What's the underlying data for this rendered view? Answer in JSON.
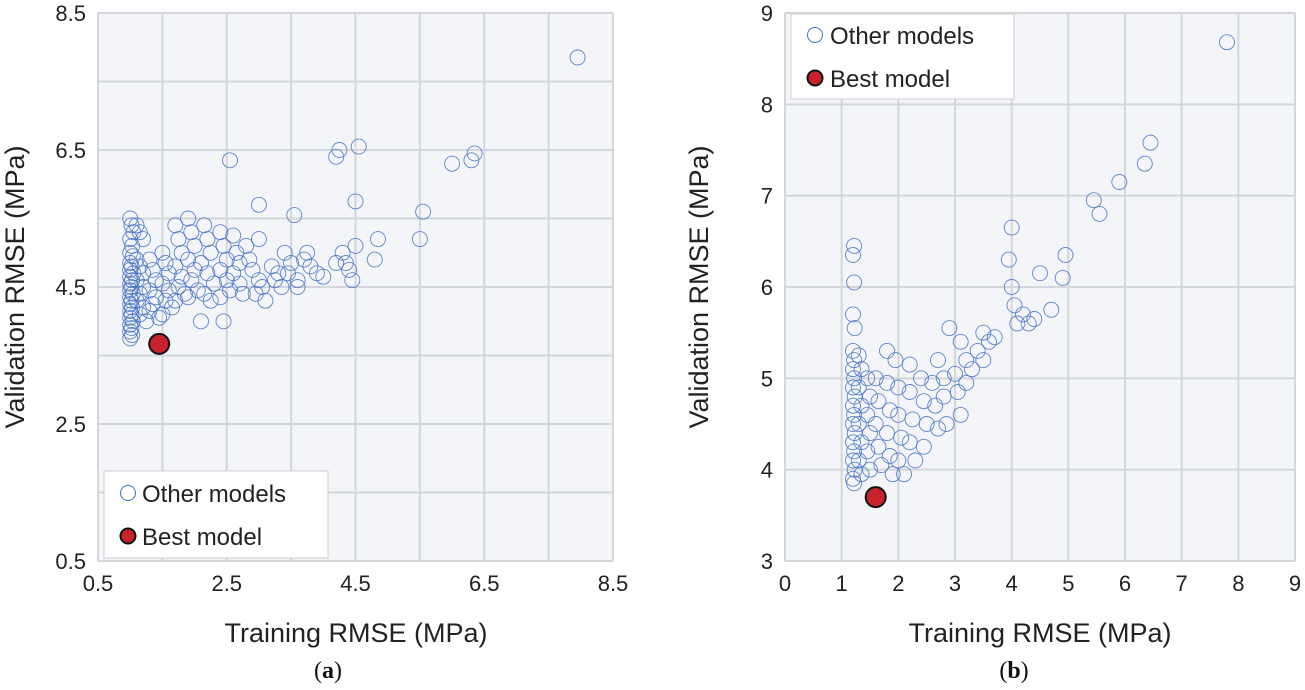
{
  "chart_data": [
    {
      "id": "a",
      "type": "scatter",
      "caption_letter": "a",
      "xlabel": "Training RMSE (MPa)",
      "ylabel": "Validation RMSE (MPa)",
      "xlim": [
        0.5,
        8.5
      ],
      "ylim": [
        0.5,
        8.5
      ],
      "xticks": [
        "0.5",
        "2.5",
        "4.5",
        "6.5",
        "8.5"
      ],
      "yticks": [
        "0.5",
        "2.5",
        "4.5",
        "6.5",
        "8.5"
      ],
      "xtick_values": [
        0.5,
        2.5,
        4.5,
        6.5,
        8.5
      ],
      "ytick_values": [
        0.5,
        2.5,
        4.5,
        6.5,
        8.5
      ],
      "grid_x": [
        0.5,
        1.5,
        2.5,
        3.5,
        4.5,
        5.5,
        6.5,
        7.5,
        8.5
      ],
      "grid_y": [
        0.5,
        1.5,
        2.5,
        3.5,
        4.5,
        5.5,
        6.5,
        7.5,
        8.5
      ],
      "legend_position": "bottom-left",
      "series": [
        {
          "name": "Other models",
          "marker": "open-circle",
          "color": "#4472c4",
          "points": [
            [
              1.0,
              5.5
            ],
            [
              1.02,
              5.4
            ],
            [
              1.05,
              5.3
            ],
            [
              1.0,
              5.2
            ],
            [
              1.03,
              5.1
            ],
            [
              1.0,
              5.0
            ],
            [
              1.04,
              4.95
            ],
            [
              1.0,
              4.85
            ],
            [
              1.02,
              4.8
            ],
            [
              1.0,
              4.75
            ],
            [
              1.05,
              4.7
            ],
            [
              1.0,
              4.65
            ],
            [
              1.03,
              4.6
            ],
            [
              1.0,
              4.55
            ],
            [
              1.02,
              4.5
            ],
            [
              1.0,
              4.45
            ],
            [
              1.04,
              4.4
            ],
            [
              1.0,
              4.35
            ],
            [
              1.02,
              4.3
            ],
            [
              1.0,
              4.25
            ],
            [
              1.03,
              4.2
            ],
            [
              1.0,
              4.15
            ],
            [
              1.02,
              4.1
            ],
            [
              1.0,
              4.05
            ],
            [
              1.04,
              4.0
            ],
            [
              1.0,
              3.95
            ],
            [
              1.02,
              3.9
            ],
            [
              1.0,
              3.85
            ],
            [
              1.03,
              3.8
            ],
            [
              1.0,
              3.75
            ],
            [
              1.1,
              5.4
            ],
            [
              1.15,
              5.3
            ],
            [
              1.2,
              5.2
            ],
            [
              1.1,
              4.9
            ],
            [
              1.15,
              4.8
            ],
            [
              1.2,
              4.7
            ],
            [
              1.1,
              4.6
            ],
            [
              1.2,
              4.5
            ],
            [
              1.15,
              4.4
            ],
            [
              1.1,
              4.3
            ],
            [
              1.2,
              4.2
            ],
            [
              1.15,
              4.1
            ],
            [
              1.25,
              4.0
            ],
            [
              1.3,
              4.9
            ],
            [
              1.35,
              4.75
            ],
            [
              1.4,
              4.6
            ],
            [
              1.3,
              4.45
            ],
            [
              1.4,
              4.35
            ],
            [
              1.35,
              4.25
            ],
            [
              1.3,
              4.15
            ],
            [
              1.45,
              4.05
            ],
            [
              1.5,
              5.0
            ],
            [
              1.55,
              4.85
            ],
            [
              1.6,
              4.7
            ],
            [
              1.5,
              4.55
            ],
            [
              1.6,
              4.45
            ],
            [
              1.55,
              4.3
            ],
            [
              1.65,
              4.2
            ],
            [
              1.5,
              4.1
            ],
            [
              1.7,
              5.4
            ],
            [
              1.75,
              5.2
            ],
            [
              1.8,
              5.0
            ],
            [
              1.7,
              4.8
            ],
            [
              1.8,
              4.65
            ],
            [
              1.75,
              4.5
            ],
            [
              1.85,
              4.4
            ],
            [
              1.7,
              4.3
            ],
            [
              1.9,
              5.5
            ],
            [
              1.95,
              5.3
            ],
            [
              2.0,
              5.1
            ],
            [
              1.9,
              4.9
            ],
            [
              2.0,
              4.75
            ],
            [
              1.95,
              4.6
            ],
            [
              2.05,
              4.45
            ],
            [
              1.9,
              4.35
            ],
            [
              2.1,
              4.0
            ],
            [
              2.15,
              5.4
            ],
            [
              2.2,
              5.2
            ],
            [
              2.25,
              5.0
            ],
            [
              2.1,
              4.85
            ],
            [
              2.2,
              4.7
            ],
            [
              2.3,
              4.55
            ],
            [
              2.15,
              4.4
            ],
            [
              2.25,
              4.3
            ],
            [
              2.4,
              5.3
            ],
            [
              2.45,
              5.1
            ],
            [
              2.5,
              4.9
            ],
            [
              2.4,
              4.75
            ],
            [
              2.5,
              4.6
            ],
            [
              2.55,
              4.45
            ],
            [
              2.4,
              4.35
            ],
            [
              2.45,
              4.0
            ],
            [
              2.6,
              5.25
            ],
            [
              2.65,
              5.0
            ],
            [
              2.7,
              4.85
            ],
            [
              2.6,
              4.7
            ],
            [
              2.7,
              4.55
            ],
            [
              2.75,
              4.4
            ],
            [
              2.55,
              6.35
            ],
            [
              2.8,
              5.1
            ],
            [
              2.85,
              4.9
            ],
            [
              2.9,
              4.75
            ],
            [
              3.0,
              5.2
            ],
            [
              3.0,
              4.6
            ],
            [
              3.05,
              4.5
            ],
            [
              2.95,
              4.4
            ],
            [
              3.1,
              4.3
            ],
            [
              3.0,
              5.7
            ],
            [
              3.2,
              4.8
            ],
            [
              3.3,
              4.7
            ],
            [
              3.25,
              4.6
            ],
            [
              3.35,
              4.5
            ],
            [
              3.4,
              5.0
            ],
            [
              3.5,
              4.85
            ],
            [
              3.45,
              4.7
            ],
            [
              3.55,
              5.55
            ],
            [
              3.6,
              4.6
            ],
            [
              3.6,
              4.5
            ],
            [
              3.7,
              4.9
            ],
            [
              3.8,
              4.8
            ],
            [
              3.75,
              5.0
            ],
            [
              3.9,
              4.7
            ],
            [
              4.0,
              4.65
            ],
            [
              4.2,
              4.85
            ],
            [
              4.2,
              6.4
            ],
            [
              4.25,
              6.5
            ],
            [
              4.3,
              5.0
            ],
            [
              4.35,
              4.85
            ],
            [
              4.4,
              4.75
            ],
            [
              4.45,
              4.6
            ],
            [
              4.5,
              5.1
            ],
            [
              4.5,
              5.75
            ],
            [
              4.55,
              6.55
            ],
            [
              4.8,
              4.9
            ],
            [
              4.85,
              5.2
            ],
            [
              5.5,
              5.2
            ],
            [
              5.55,
              5.6
            ],
            [
              6.0,
              6.3
            ],
            [
              6.3,
              6.35
            ],
            [
              6.35,
              6.45
            ],
            [
              7.95,
              7.85
            ]
          ]
        },
        {
          "name": "Best model",
          "marker": "filled-circle",
          "color": "#c8232c",
          "points": [
            [
              1.45,
              3.67
            ]
          ]
        }
      ]
    },
    {
      "id": "b",
      "type": "scatter",
      "caption_letter": "b",
      "xlabel": "Training RMSE (MPa)",
      "ylabel": "Validation RMSE (MPa)",
      "xlim": [
        0,
        9
      ],
      "ylim": [
        3,
        9
      ],
      "xticks": [
        "0",
        "1",
        "2",
        "3",
        "4",
        "5",
        "6",
        "7",
        "8",
        "9"
      ],
      "yticks": [
        "3",
        "4",
        "5",
        "6",
        "7",
        "8",
        "9"
      ],
      "xtick_values": [
        0,
        1,
        2,
        3,
        4,
        5,
        6,
        7,
        8,
        9
      ],
      "ytick_values": [
        3,
        4,
        5,
        6,
        7,
        8,
        9
      ],
      "grid_x": [
        0,
        1,
        2,
        3,
        4,
        5,
        6,
        7,
        8,
        9
      ],
      "grid_y": [
        3,
        4,
        5,
        6,
        7,
        8,
        9
      ],
      "legend_position": "top-left",
      "series": [
        {
          "name": "Other models",
          "marker": "open-circle",
          "color": "#4472c4",
          "points": [
            [
              1.22,
              6.45
            ],
            [
              1.2,
              6.35
            ],
            [
              1.22,
              6.05
            ],
            [
              1.2,
              5.7
            ],
            [
              1.23,
              5.55
            ],
            [
              1.2,
              5.3
            ],
            [
              1.22,
              5.2
            ],
            [
              1.2,
              5.1
            ],
            [
              1.22,
              5.0
            ],
            [
              1.2,
              4.9
            ],
            [
              1.23,
              4.8
            ],
            [
              1.2,
              4.7
            ],
            [
              1.22,
              4.6
            ],
            [
              1.2,
              4.5
            ],
            [
              1.23,
              4.4
            ],
            [
              1.2,
              4.3
            ],
            [
              1.22,
              4.2
            ],
            [
              1.2,
              4.1
            ],
            [
              1.23,
              4.0
            ],
            [
              1.2,
              3.9
            ],
            [
              1.22,
              3.85
            ],
            [
              1.3,
              5.25
            ],
            [
              1.35,
              5.1
            ],
            [
              1.3,
              4.9
            ],
            [
              1.35,
              4.7
            ],
            [
              1.3,
              4.5
            ],
            [
              1.35,
              4.3
            ],
            [
              1.3,
              4.1
            ],
            [
              1.35,
              3.95
            ],
            [
              1.45,
              5.0
            ],
            [
              1.5,
              4.8
            ],
            [
              1.45,
              4.6
            ],
            [
              1.5,
              4.4
            ],
            [
              1.45,
              4.2
            ],
            [
              1.5,
              4.0
            ],
            [
              1.6,
              5.0
            ],
            [
              1.65,
              4.75
            ],
            [
              1.6,
              4.5
            ],
            [
              1.65,
              4.25
            ],
            [
              1.7,
              4.05
            ],
            [
              1.8,
              5.3
            ],
            [
              1.8,
              4.95
            ],
            [
              1.85,
              4.65
            ],
            [
              1.8,
              4.4
            ],
            [
              1.85,
              4.15
            ],
            [
              1.9,
              3.95
            ],
            [
              1.95,
              5.2
            ],
            [
              2.0,
              4.9
            ],
            [
              2.0,
              4.6
            ],
            [
              2.05,
              4.35
            ],
            [
              2.0,
              4.1
            ],
            [
              2.1,
              3.95
            ],
            [
              2.2,
              5.15
            ],
            [
              2.2,
              4.85
            ],
            [
              2.25,
              4.55
            ],
            [
              2.2,
              4.3
            ],
            [
              2.3,
              4.1
            ],
            [
              2.4,
              5.0
            ],
            [
              2.45,
              4.75
            ],
            [
              2.5,
              4.5
            ],
            [
              2.45,
              4.25
            ],
            [
              2.6,
              4.95
            ],
            [
              2.65,
              4.7
            ],
            [
              2.7,
              4.45
            ],
            [
              2.7,
              5.2
            ],
            [
              2.8,
              5.0
            ],
            [
              2.8,
              4.8
            ],
            [
              2.85,
              4.5
            ],
            [
              2.9,
              5.55
            ],
            [
              3.0,
              5.05
            ],
            [
              3.05,
              4.85
            ],
            [
              3.1,
              4.6
            ],
            [
              3.1,
              5.4
            ],
            [
              3.2,
              5.2
            ],
            [
              3.2,
              4.95
            ],
            [
              3.3,
              5.1
            ],
            [
              3.4,
              5.3
            ],
            [
              3.5,
              5.5
            ],
            [
              3.5,
              5.2
            ],
            [
              3.6,
              5.4
            ],
            [
              3.7,
              5.45
            ],
            [
              4.0,
              6.65
            ],
            [
              3.95,
              6.3
            ],
            [
              4.0,
              6.0
            ],
            [
              4.05,
              5.8
            ],
            [
              4.1,
              5.6
            ],
            [
              4.2,
              5.7
            ],
            [
              4.3,
              5.6
            ],
            [
              4.4,
              5.65
            ],
            [
              4.5,
              6.15
            ],
            [
              4.7,
              5.75
            ],
            [
              4.9,
              6.1
            ],
            [
              4.95,
              6.35
            ],
            [
              5.45,
              6.95
            ],
            [
              5.55,
              6.8
            ],
            [
              5.9,
              7.15
            ],
            [
              6.35,
              7.35
            ],
            [
              6.45,
              7.58
            ],
            [
              7.8,
              8.68
            ]
          ]
        },
        {
          "name": "Best model",
          "marker": "filled-circle",
          "color": "#c8232c",
          "points": [
            [
              1.6,
              3.7
            ]
          ]
        }
      ]
    }
  ]
}
